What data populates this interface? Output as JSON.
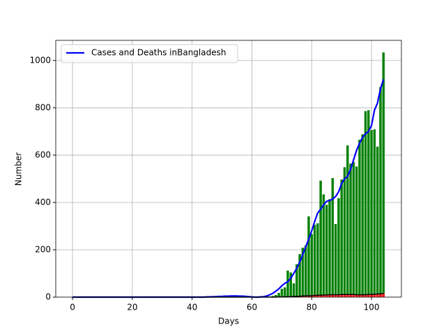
{
  "chart_data": {
    "type": "bar",
    "xlabel": "Days",
    "ylabel": "Number",
    "xlim": [
      -5.6,
      110
    ],
    "ylim": [
      0,
      1085
    ],
    "xticks": [
      0,
      20,
      40,
      60,
      80,
      100
    ],
    "yticks": [
      0,
      200,
      400,
      600,
      800,
      1000
    ],
    "grid": true,
    "legend": "upper left",
    "x": [
      0,
      1,
      2,
      3,
      4,
      5,
      6,
      7,
      8,
      9,
      10,
      11,
      12,
      13,
      14,
      15,
      16,
      17,
      18,
      19,
      20,
      21,
      22,
      23,
      24,
      25,
      26,
      27,
      28,
      29,
      30,
      31,
      32,
      33,
      34,
      35,
      36,
      37,
      38,
      39,
      40,
      41,
      42,
      43,
      44,
      45,
      46,
      47,
      48,
      49,
      50,
      51,
      52,
      53,
      54,
      55,
      56,
      57,
      58,
      59,
      60,
      61,
      62,
      63,
      64,
      65,
      66,
      67,
      68,
      69,
      70,
      71,
      72,
      73,
      74,
      75,
      76,
      77,
      78,
      79,
      80,
      81,
      82,
      83,
      84,
      85,
      86,
      87,
      88,
      89,
      90,
      91,
      92,
      93,
      94,
      95,
      96,
      97,
      98,
      99,
      100,
      101,
      102,
      103,
      104
    ],
    "bars": [
      {
        "color": "green",
        "values": [
          0,
          0,
          0,
          0,
          0,
          0,
          0,
          0,
          0,
          0,
          0,
          0,
          0,
          0,
          0,
          0,
          0,
          0,
          0,
          0,
          0,
          0,
          0,
          0,
          0,
          0,
          0,
          0,
          0,
          0,
          0,
          0,
          0,
          0,
          0,
          0,
          0,
          0,
          0,
          0,
          0,
          0,
          0,
          0,
          0,
          0,
          0,
          0,
          0,
          0,
          0,
          0,
          0,
          0,
          0,
          0,
          0,
          0,
          0,
          0,
          0,
          0,
          0,
          0,
          0,
          3,
          2,
          5,
          9,
          18,
          35,
          41,
          112,
          104,
          58,
          139,
          182,
          209,
          219,
          341,
          266,
          306,
          312,
          492,
          434,
          390,
          414,
          503,
          309,
          418,
          497,
          549,
          641,
          564,
          571,
          552,
          665,
          688,
          786,
          790,
          706,
          709,
          636,
          887,
          1034
        ]
      },
      {
        "color": "red",
        "values": [
          0,
          0,
          0,
          0,
          0,
          0,
          0,
          0,
          0,
          0,
          0,
          0,
          0,
          0,
          0,
          0,
          0,
          0,
          0,
          0,
          0,
          0,
          0,
          0,
          0,
          0,
          0,
          0,
          0,
          0,
          0,
          0,
          0,
          0,
          0,
          0,
          0,
          0,
          0,
          0,
          0,
          0,
          0,
          0,
          0,
          0,
          0,
          0,
          0,
          0,
          0,
          0,
          0,
          0,
          0,
          0,
          0,
          0,
          0,
          0,
          0,
          0,
          0,
          0,
          0,
          0,
          0,
          0,
          1,
          1,
          1,
          2,
          2,
          3,
          5,
          4,
          5,
          6,
          7,
          6,
          8,
          10,
          9,
          8,
          9,
          11,
          12,
          10,
          9,
          11,
          12,
          13,
          11,
          10,
          9,
          8,
          9,
          8,
          11,
          12,
          12,
          13,
          14,
          15,
          16
        ]
      }
    ],
    "series": [
      {
        "name": "Cases and Deaths inBangladesh",
        "color": "blue",
        "values": [
          0,
          0,
          0,
          0,
          0,
          0,
          0,
          0,
          0,
          0,
          0,
          0,
          0,
          0,
          0,
          0,
          0,
          0,
          0,
          0,
          0,
          0,
          0,
          0,
          0,
          0,
          0,
          0,
          0,
          0,
          0,
          0,
          0,
          0,
          0,
          0,
          0,
          0,
          0,
          0,
          0,
          0,
          0,
          0,
          0,
          1,
          1,
          2,
          2,
          3,
          3,
          4,
          4,
          5,
          5,
          5,
          4,
          4,
          3,
          2,
          1,
          0,
          0,
          1,
          2,
          5,
          10,
          16,
          25,
          35,
          48,
          58,
          65,
          80,
          100,
          122,
          148,
          180,
          212,
          245,
          280,
          320,
          355,
          372,
          390,
          405,
          408,
          415,
          425,
          445,
          480,
          500,
          510,
          540,
          580,
          620,
          650,
          675,
          690,
          700,
          725,
          790,
          820,
          880,
          920
        ]
      },
      {
        "color": "black",
        "values": [
          0,
          0,
          0,
          0,
          0,
          0,
          0,
          0,
          0,
          0,
          0,
          0,
          0,
          0,
          0,
          0,
          0,
          0,
          0,
          0,
          0,
          0,
          0,
          0,
          0,
          0,
          0,
          0,
          0,
          0,
          0,
          0,
          0,
          0,
          0,
          0,
          0,
          0,
          0,
          0,
          0,
          0,
          0,
          0,
          0,
          0,
          0,
          0,
          0,
          0,
          0,
          0,
          0,
          0,
          0,
          0,
          0,
          0,
          0,
          0,
          0,
          0,
          0,
          0,
          0,
          0,
          0,
          0,
          0,
          1,
          1,
          1,
          2,
          2,
          3,
          3,
          4,
          5,
          5,
          6,
          6,
          7,
          8,
          8,
          9,
          9,
          10,
          10,
          10,
          10,
          11,
          11,
          11,
          11,
          11,
          10,
          10,
          10,
          10,
          11,
          11,
          12,
          13,
          14,
          15
        ]
      }
    ]
  }
}
